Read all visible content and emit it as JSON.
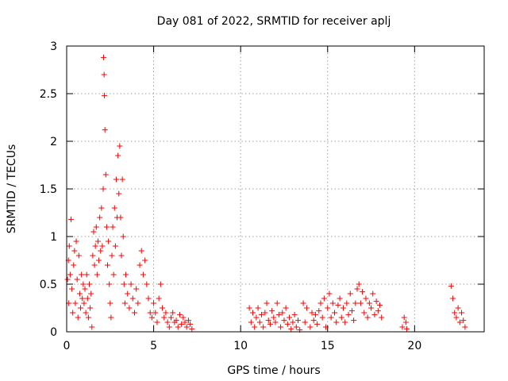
{
  "chart_data": {
    "type": "scatter",
    "title": "Day 081 of 2022, SRMTID for receiver aplj",
    "xlabel": "GPS time / hours",
    "ylabel": "SRMTID / TECUs",
    "xlim": [
      0,
      24
    ],
    "ylim": [
      0,
      3
    ],
    "xticks": [
      0,
      5,
      10,
      15,
      20
    ],
    "xtick_labels": [
      "0",
      "5",
      "10",
      "15",
      "20"
    ],
    "yticks": [
      0,
      0.5,
      1,
      1.5,
      2,
      2.5,
      3
    ],
    "ytick_labels": [
      "0",
      "0.5",
      "1",
      "1.5",
      "2",
      "2.5",
      "3"
    ],
    "grid": true,
    "marker": "plus",
    "color": "#ff0000",
    "series": [
      {
        "name": "SRMTID",
        "points": [
          [
            0.05,
            0.55
          ],
          [
            0.1,
            0.75
          ],
          [
            0.12,
            0.3
          ],
          [
            0.15,
            0.9
          ],
          [
            0.2,
            0.6
          ],
          [
            0.25,
            1.18
          ],
          [
            0.3,
            0.45
          ],
          [
            0.35,
            0.2
          ],
          [
            0.4,
            0.7
          ],
          [
            0.45,
            0.85
          ],
          [
            0.5,
            0.3
          ],
          [
            0.55,
            0.95
          ],
          [
            0.6,
            0.55
          ],
          [
            0.65,
            0.15
          ],
          [
            0.7,
            0.8
          ],
          [
            0.75,
            0.4
          ],
          [
            0.8,
            0.25
          ],
          [
            0.85,
            0.6
          ],
          [
            0.9,
            0.35
          ],
          [
            0.95,
            0.5
          ],
          [
            1.0,
            0.3
          ],
          [
            1.05,
            0.45
          ],
          [
            1.1,
            0.2
          ],
          [
            1.15,
            0.6
          ],
          [
            1.2,
            0.35
          ],
          [
            1.25,
            0.15
          ],
          [
            1.3,
            0.5
          ],
          [
            1.35,
            0.25
          ],
          [
            1.4,
            0.4
          ],
          [
            1.45,
            0.05
          ],
          [
            1.5,
            0.8
          ],
          [
            1.55,
            1.05
          ],
          [
            1.6,
            0.7
          ],
          [
            1.65,
            0.9
          ],
          [
            1.7,
            1.1
          ],
          [
            1.75,
            0.6
          ],
          [
            1.8,
            0.95
          ],
          [
            1.85,
            0.75
          ],
          [
            1.9,
            1.2
          ],
          [
            1.95,
            0.85
          ],
          [
            2.0,
            1.3
          ],
          [
            2.05,
            0.9
          ],
          [
            2.1,
            1.5
          ],
          [
            2.12,
            2.88
          ],
          [
            2.15,
            2.7
          ],
          [
            2.17,
            2.48
          ],
          [
            2.2,
            2.12
          ],
          [
            2.25,
            1.65
          ],
          [
            2.3,
            1.1
          ],
          [
            2.35,
            0.7
          ],
          [
            2.4,
            0.95
          ],
          [
            2.45,
            0.5
          ],
          [
            2.5,
            0.3
          ],
          [
            2.55,
            0.15
          ],
          [
            2.6,
            0.8
          ],
          [
            2.65,
            1.1
          ],
          [
            2.7,
            0.6
          ],
          [
            2.75,
            1.3
          ],
          [
            2.8,
            0.9
          ],
          [
            2.85,
            1.6
          ],
          [
            2.9,
            1.2
          ],
          [
            2.95,
            1.85
          ],
          [
            3.0,
            1.45
          ],
          [
            3.05,
            1.95
          ],
          [
            3.1,
            1.2
          ],
          [
            3.15,
            0.8
          ],
          [
            3.2,
            1.6
          ],
          [
            3.25,
            1.0
          ],
          [
            3.3,
            0.5
          ],
          [
            3.35,
            0.3
          ],
          [
            3.4,
            0.6
          ],
          [
            3.5,
            0.4
          ],
          [
            3.6,
            0.25
          ],
          [
            3.7,
            0.5
          ],
          [
            3.8,
            0.35
          ],
          [
            3.9,
            0.2
          ],
          [
            4.0,
            0.45
          ],
          [
            4.1,
            0.3
          ],
          [
            4.2,
            0.7
          ],
          [
            4.3,
            0.85
          ],
          [
            4.4,
            0.6
          ],
          [
            4.5,
            0.75
          ],
          [
            4.6,
            0.5
          ],
          [
            4.7,
            0.35
          ],
          [
            4.8,
            0.2
          ],
          [
            4.9,
            0.15
          ],
          [
            5.0,
            0.3
          ],
          [
            5.1,
            0.2
          ],
          [
            5.2,
            0.1
          ],
          [
            5.3,
            0.35
          ],
          [
            5.4,
            0.5
          ],
          [
            5.5,
            0.25
          ],
          [
            5.6,
            0.15
          ],
          [
            5.7,
            0.2
          ],
          [
            5.8,
            0.1
          ],
          [
            5.9,
            0.05
          ],
          [
            6.0,
            0.15
          ],
          [
            6.1,
            0.2
          ],
          [
            6.2,
            0.1
          ],
          [
            6.3,
            0.12
          ],
          [
            6.4,
            0.05
          ],
          [
            6.5,
            0.18
          ],
          [
            6.6,
            0.08
          ],
          [
            6.7,
            0.15
          ],
          [
            6.8,
            0.1
          ],
          [
            6.9,
            0.05
          ],
          [
            7.0,
            0.12
          ],
          [
            7.1,
            0.08
          ],
          [
            7.2,
            0.03
          ],
          [
            10.5,
            0.25
          ],
          [
            10.6,
            0.1
          ],
          [
            10.7,
            0.2
          ],
          [
            10.8,
            0.05
          ],
          [
            10.9,
            0.15
          ],
          [
            11.0,
            0.25
          ],
          [
            11.1,
            0.1
          ],
          [
            11.2,
            0.18
          ],
          [
            11.3,
            0.05
          ],
          [
            11.4,
            0.2
          ],
          [
            11.5,
            0.3
          ],
          [
            11.6,
            0.12
          ],
          [
            11.7,
            0.08
          ],
          [
            11.8,
            0.22
          ],
          [
            11.9,
            0.15
          ],
          [
            12.0,
            0.1
          ],
          [
            12.1,
            0.3
          ],
          [
            12.2,
            0.18
          ],
          [
            12.3,
            0.05
          ],
          [
            12.4,
            0.2
          ],
          [
            12.5,
            0.12
          ],
          [
            12.6,
            0.25
          ],
          [
            12.7,
            0.08
          ],
          [
            12.8,
            0.15
          ],
          [
            12.9,
            0.03
          ],
          [
            13.0,
            0.1
          ],
          [
            13.1,
            0.18
          ],
          [
            13.2,
            0.05
          ],
          [
            13.3,
            0.12
          ],
          [
            13.4,
            0.02
          ],
          [
            13.6,
            0.3
          ],
          [
            13.7,
            0.1
          ],
          [
            13.8,
            0.25
          ],
          [
            14.0,
            0.05
          ],
          [
            14.1,
            0.2
          ],
          [
            14.2,
            0.12
          ],
          [
            14.3,
            0.18
          ],
          [
            14.4,
            0.08
          ],
          [
            14.5,
            0.22
          ],
          [
            14.6,
            0.3
          ],
          [
            14.7,
            0.15
          ],
          [
            14.8,
            0.35
          ],
          [
            14.9,
            0.05
          ],
          [
            15.0,
            0.25
          ],
          [
            15.1,
            0.4
          ],
          [
            15.2,
            0.15
          ],
          [
            15.3,
            0.3
          ],
          [
            15.4,
            0.2
          ],
          [
            15.5,
            0.1
          ],
          [
            15.6,
            0.28
          ],
          [
            15.7,
            0.35
          ],
          [
            15.8,
            0.15
          ],
          [
            15.9,
            0.25
          ],
          [
            16.0,
            0.1
          ],
          [
            16.1,
            0.3
          ],
          [
            16.2,
            0.18
          ],
          [
            16.3,
            0.4
          ],
          [
            16.4,
            0.22
          ],
          [
            16.5,
            0.12
          ],
          [
            16.6,
            0.3
          ],
          [
            16.7,
            0.45
          ],
          [
            16.8,
            0.5
          ],
          [
            16.9,
            0.3
          ],
          [
            17.0,
            0.42
          ],
          [
            17.1,
            0.2
          ],
          [
            17.2,
            0.35
          ],
          [
            17.3,
            0.15
          ],
          [
            17.4,
            0.3
          ],
          [
            17.5,
            0.25
          ],
          [
            17.6,
            0.4
          ],
          [
            17.7,
            0.18
          ],
          [
            17.8,
            0.32
          ],
          [
            17.9,
            0.22
          ],
          [
            18.0,
            0.28
          ],
          [
            18.1,
            0.15
          ],
          [
            19.3,
            0.05
          ],
          [
            19.4,
            0.15
          ],
          [
            19.5,
            0.1
          ],
          [
            19.55,
            0.03
          ],
          [
            22.1,
            0.48
          ],
          [
            22.2,
            0.35
          ],
          [
            22.3,
            0.2
          ],
          [
            22.4,
            0.15
          ],
          [
            22.5,
            0.25
          ],
          [
            22.6,
            0.1
          ],
          [
            22.7,
            0.2
          ],
          [
            22.8,
            0.12
          ],
          [
            22.9,
            0.05
          ]
        ]
      }
    ]
  }
}
